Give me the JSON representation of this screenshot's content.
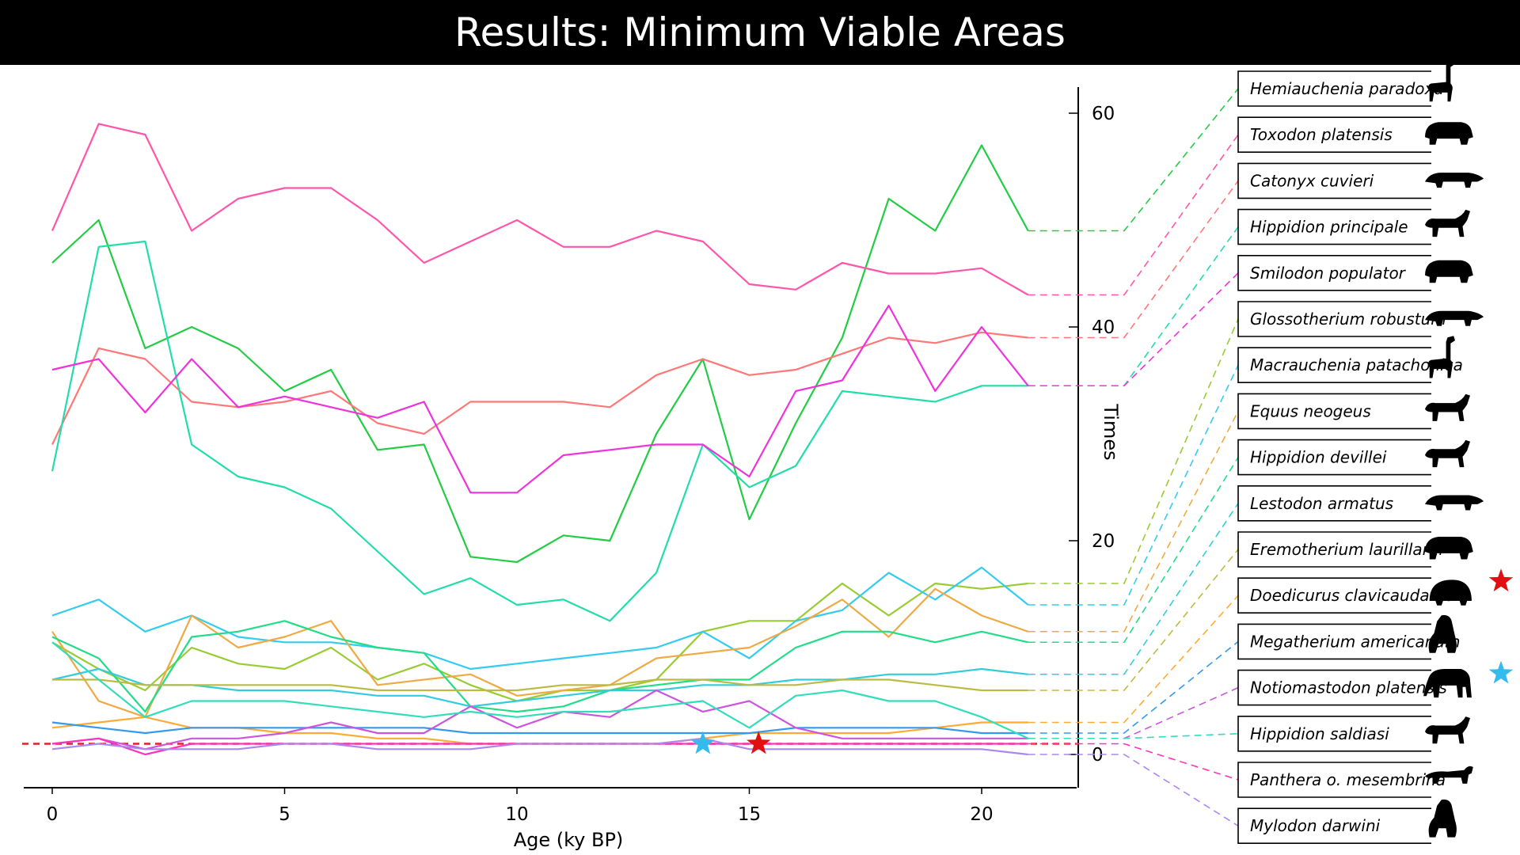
{
  "title": "Results: Minimum Viable Areas",
  "colors": {
    "title_bg": "#000000",
    "title_text": "#ffffff",
    "threshold": "#dd2222",
    "star_red": "#e01010",
    "star_blue": "#33bbee"
  },
  "chart_data": {
    "type": "line",
    "title": "Results: Minimum Viable Areas",
    "xlabel": "Age (ky BP)",
    "ylabel": "Times",
    "xlim": [
      -1,
      22
    ],
    "ylim": [
      -3,
      62
    ],
    "x_ticks": [
      0,
      5,
      10,
      15,
      20
    ],
    "y_ticks": [
      0,
      20,
      40,
      60
    ],
    "grid": false,
    "threshold": {
      "y": 1,
      "style": "dashed",
      "color": "#dd2222"
    },
    "markers": [
      {
        "shape": "star",
        "x": 14,
        "y": 1,
        "color": "#33bbee"
      },
      {
        "shape": "star",
        "x": 15.2,
        "y": 1,
        "color": "#e01010"
      }
    ],
    "x": [
      0,
      1,
      2,
      3,
      4,
      5,
      6,
      7,
      8,
      9,
      10,
      11,
      12,
      13,
      14,
      15,
      16,
      17,
      18,
      19,
      20,
      21
    ],
    "series": [
      {
        "name": "Hemiauchenia paradoxa",
        "color": "#22cc44",
        "end_y": 49,
        "values": [
          46,
          50,
          38,
          40,
          38,
          34,
          36,
          28.5,
          29,
          18.5,
          18,
          20.5,
          20,
          30,
          37,
          22,
          31,
          39,
          52,
          49,
          57,
          49
        ]
      },
      {
        "name": "Toxodon platensis",
        "color": "#ff55aa",
        "end_y": 43,
        "values": [
          49,
          59,
          58,
          49,
          52,
          53,
          53,
          50,
          46,
          48,
          50,
          47.5,
          47.5,
          49,
          48,
          44,
          43.5,
          46,
          45,
          45,
          45.5,
          43
        ]
      },
      {
        "name": "Catonyx cuvieri",
        "color": "#ff7777",
        "end_y": 39,
        "values": [
          29,
          38,
          37,
          33,
          32.5,
          33,
          34,
          31,
          30,
          33,
          33,
          33,
          32.5,
          35.5,
          37,
          35.5,
          36,
          37.5,
          39,
          38.5,
          39.5,
          39
        ]
      },
      {
        "name": "Hippidion principale",
        "color": "#22ddaa",
        "end_y": 34.5,
        "values": [
          26.5,
          47.5,
          48,
          29,
          26,
          25,
          23,
          19,
          15,
          16.5,
          14,
          14.5,
          12.5,
          17,
          29,
          25,
          27,
          34,
          33.5,
          33,
          34.5,
          34.5
        ]
      },
      {
        "name": "Smilodon populator",
        "color": "#ee33dd",
        "end_y": 34.5,
        "values": [
          36,
          37,
          32,
          37,
          32.5,
          33.5,
          32.5,
          31.5,
          33,
          24.5,
          24.5,
          28,
          28.5,
          29,
          29,
          26,
          34,
          35,
          42,
          34,
          40,
          34.5
        ]
      },
      {
        "name": "Glossotherium robustum",
        "color": "#99cc33",
        "end_y": 16,
        "values": [
          10.5,
          8,
          6,
          10,
          8.5,
          8,
          10,
          7,
          8.5,
          6.5,
          5,
          6,
          6,
          7,
          11.5,
          12.5,
          12.5,
          16,
          13,
          16,
          15.5,
          16
        ]
      },
      {
        "name": "Macrauchenia patachonica",
        "color": "#33ccee",
        "end_y": 14,
        "values": [
          13,
          14.5,
          11.5,
          13,
          11,
          10.5,
          10.5,
          10,
          9.5,
          8,
          8.5,
          9,
          9.5,
          10,
          11.5,
          9,
          12.5,
          13.5,
          17,
          14.5,
          17.5,
          14
        ]
      },
      {
        "name": "Equus neogeus",
        "color": "#eeaa44",
        "end_y": 11.5,
        "values": [
          11.5,
          5,
          3.5,
          13,
          10,
          11,
          12.5,
          6.5,
          7,
          7.5,
          5.5,
          6,
          6.5,
          9,
          9.5,
          10,
          12,
          14.5,
          11,
          15.5,
          13,
          11.5
        ]
      },
      {
        "name": "Hippidion devillei",
        "color": "#22dd88",
        "end_y": 10.5,
        "values": [
          11,
          9,
          4,
          11,
          11.5,
          12.5,
          11,
          10,
          9.5,
          4.5,
          4,
          4.5,
          6,
          6.5,
          7,
          7,
          10,
          11.5,
          11.5,
          10.5,
          11.5,
          10.5
        ]
      },
      {
        "name": "Lestodon armatus",
        "color": "#33ccdd",
        "end_y": 7.5,
        "values": [
          7,
          8,
          6.5,
          6.5,
          6,
          6,
          6,
          5.5,
          5.5,
          4.5,
          5,
          5.5,
          6,
          6,
          6.5,
          6.5,
          7,
          7,
          7.5,
          7.5,
          8,
          7.5
        ]
      },
      {
        "name": "Eremotherium laurillardi",
        "color": "#bbbb44",
        "end_y": 6,
        "values": [
          7,
          7,
          6.5,
          6.5,
          6.5,
          6.5,
          6.5,
          6,
          6,
          6,
          6,
          6.5,
          6.5,
          7,
          7,
          6.5,
          6.5,
          7,
          7,
          6.5,
          6,
          6
        ]
      },
      {
        "name": "Doedicurus clavicaudatus",
        "color": "#ffaa33",
        "end_y": 3,
        "values": [
          2.5,
          3,
          3.5,
          2.5,
          2.5,
          2,
          2,
          1.5,
          1.5,
          1,
          1,
          1,
          1,
          1,
          1.5,
          2,
          2,
          2,
          2,
          2.5,
          3,
          3
        ]
      },
      {
        "name": "Megatherium americanum",
        "color": "#3399ee",
        "end_y": 2,
        "values": [
          3,
          2.5,
          2,
          2.5,
          2.5,
          2.5,
          2.5,
          2.5,
          2.5,
          2,
          2,
          2,
          2,
          2,
          2,
          2,
          2.5,
          2.5,
          2.5,
          2.5,
          2,
          2
        ]
      },
      {
        "name": "Notiomastodon platensis",
        "color": "#cc55dd",
        "end_y": 1.5,
        "values": [
          1,
          1.5,
          0.5,
          1.5,
          1.5,
          2,
          3,
          2,
          2,
          4.5,
          2.5,
          4,
          3.5,
          6,
          4,
          5,
          2.5,
          1.5,
          1.5,
          1.5,
          1.5,
          1.5
        ]
      },
      {
        "name": "Hippidion saldiasi",
        "color": "#33ddbb",
        "end_y": 1.5,
        "values": [
          10.5,
          7,
          3.5,
          5,
          5,
          5,
          4.5,
          4,
          3.5,
          4,
          3.5,
          4,
          4,
          4.5,
          5,
          2.5,
          5.5,
          6,
          5,
          5,
          3.5,
          1.5
        ]
      },
      {
        "name": "Panthera o. mesembrina",
        "color": "#ff33bb",
        "end_y": 1,
        "values": [
          1,
          1.5,
          0,
          1,
          1,
          1,
          1,
          1,
          1,
          1,
          1,
          1,
          1,
          1,
          1,
          1,
          1,
          1,
          1,
          1,
          1,
          1
        ]
      },
      {
        "name": "Mylodon darwini",
        "color": "#aa88ee",
        "end_y": 0,
        "values": [
          0.5,
          1,
          0.5,
          0.5,
          0.5,
          1,
          1,
          0.5,
          0.5,
          0.5,
          1,
          1,
          1,
          1,
          1.5,
          0.5,
          0.5,
          0.5,
          0.5,
          0.5,
          0.5,
          0
        ]
      }
    ],
    "annotations": [
      {
        "species": "Doedicurus clavicaudatus",
        "marker": "star",
        "color": "#e01010"
      },
      {
        "species": "Notiomastodon platensis",
        "marker": "star",
        "color": "#33bbee"
      }
    ]
  },
  "legend": {
    "placement": "right",
    "icons": [
      "llama-silhouette-icon",
      "toxodon-silhouette-icon",
      "ground-sloth-silhouette-icon",
      "horse-silhouette-icon",
      "sabertooth-silhouette-icon",
      "glyptodont-sloth-silhouette-icon",
      "macrauchenia-silhouette-icon",
      "horse-silhouette-icon",
      "horse-silhouette-icon",
      "ground-sloth-silhouette-icon",
      "giant-sloth-silhouette-icon",
      "glyptodont-silhouette-icon",
      "megatherium-silhouette-icon",
      "mastodon-silhouette-icon",
      "horse-silhouette-icon",
      "jaguar-silhouette-icon",
      "mylodon-silhouette-icon"
    ]
  }
}
